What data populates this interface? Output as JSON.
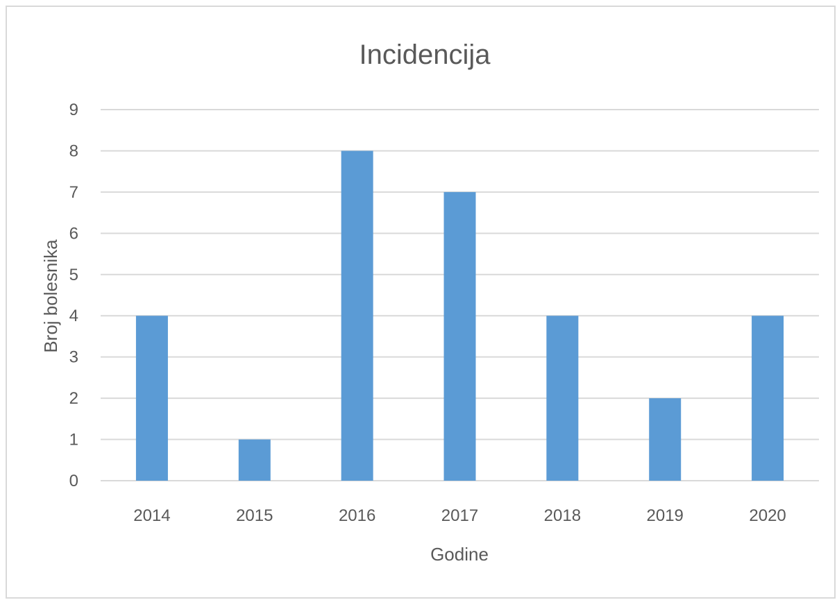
{
  "chart_data": {
    "type": "bar",
    "title": "Incidencija",
    "xlabel": "Godine",
    "ylabel": "Broj bolesnika",
    "categories": [
      "2014",
      "2015",
      "2016",
      "2017",
      "2018",
      "2019",
      "2020"
    ],
    "values": [
      4,
      1,
      8,
      7,
      4,
      2,
      4
    ],
    "ylim": [
      0,
      9
    ],
    "yticks": [
      "0",
      "1",
      "2",
      "3",
      "4",
      "5",
      "6",
      "7",
      "8",
      "9"
    ],
    "grid": true,
    "legend": "none",
    "colors": {
      "bar": "#5b9bd5",
      "grid": "#d9d9d9",
      "text": "#595959"
    }
  }
}
